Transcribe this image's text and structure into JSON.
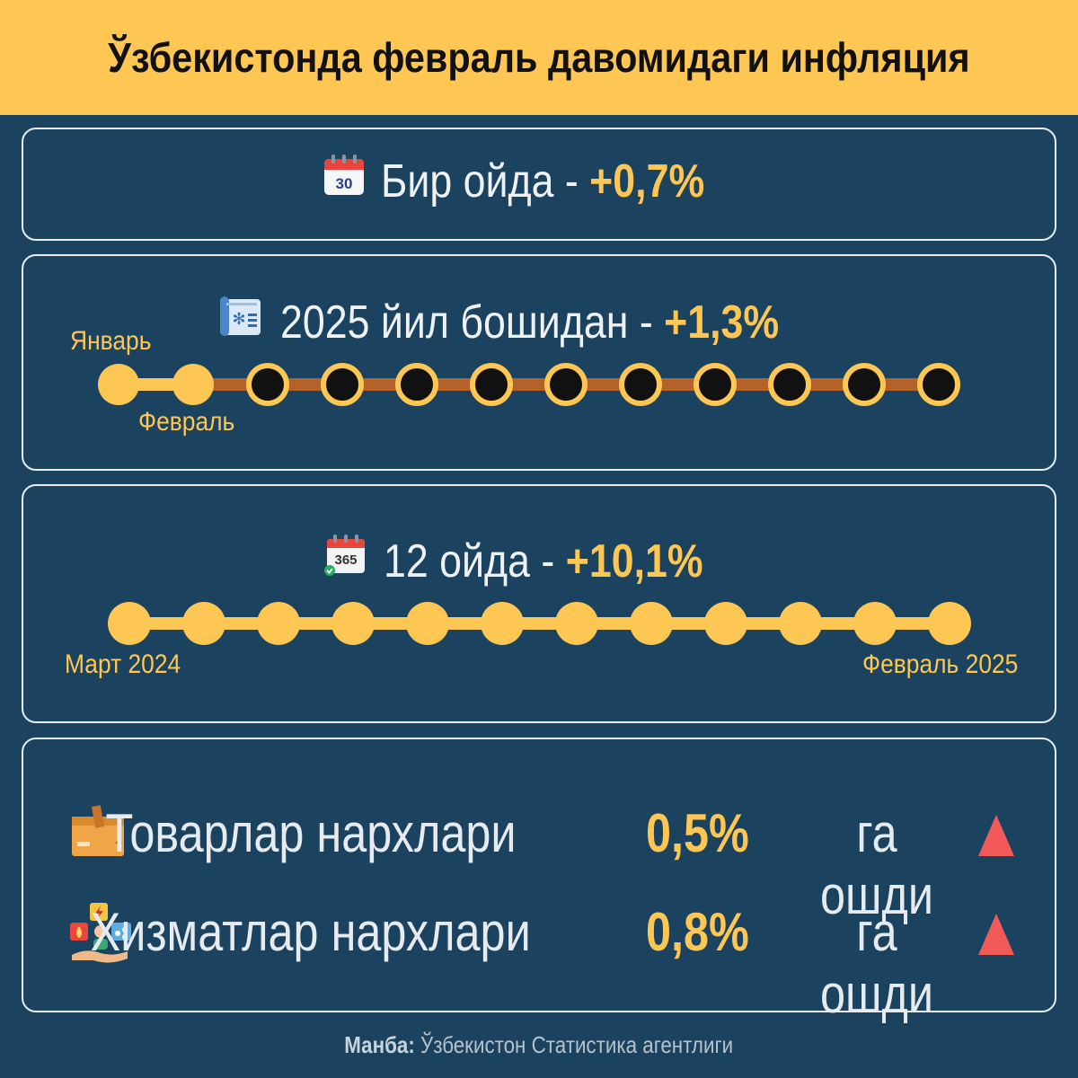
{
  "title": "Ўзбекистонда февраль давомидаги инфляция",
  "monthly": {
    "label": "Бир ойда - ",
    "value": "+0,7%",
    "icon": "calendar-30-icon",
    "icon_text": "30"
  },
  "ytd": {
    "label": "2025 йил бошидан - ",
    "value": "+1,3%",
    "icon": "snow-calendar-icon",
    "start_label": "Январь",
    "second_label": "Февраль",
    "months_total": 12,
    "months_elapsed": 2
  },
  "yoy": {
    "label": "12 ойда - ",
    "value": "+10,1%",
    "icon": "calendar-365-icon",
    "icon_text": "365",
    "start_label": "Март 2024",
    "end_label": "Февраль 2025",
    "months_total": 12
  },
  "breakdown": [
    {
      "label": "Товарлар нархлари",
      "value": "0,5%",
      "suffix": "га ошди",
      "icon": "box-icon",
      "trend": "up"
    },
    {
      "label": "Хизматлар нархлари",
      "value": "0,8%",
      "suffix": "га ошди",
      "icon": "utilities-icon",
      "trend": "up"
    }
  ],
  "source": {
    "prefix": "Манба:",
    "text": " Ўзбекистон Статистика агентлиги"
  },
  "colors": {
    "background": "#1b425e",
    "accent": "#fec653",
    "track_past": "#fec653",
    "track_future": "#b5622a",
    "up_arrow": "#f25a5a"
  }
}
